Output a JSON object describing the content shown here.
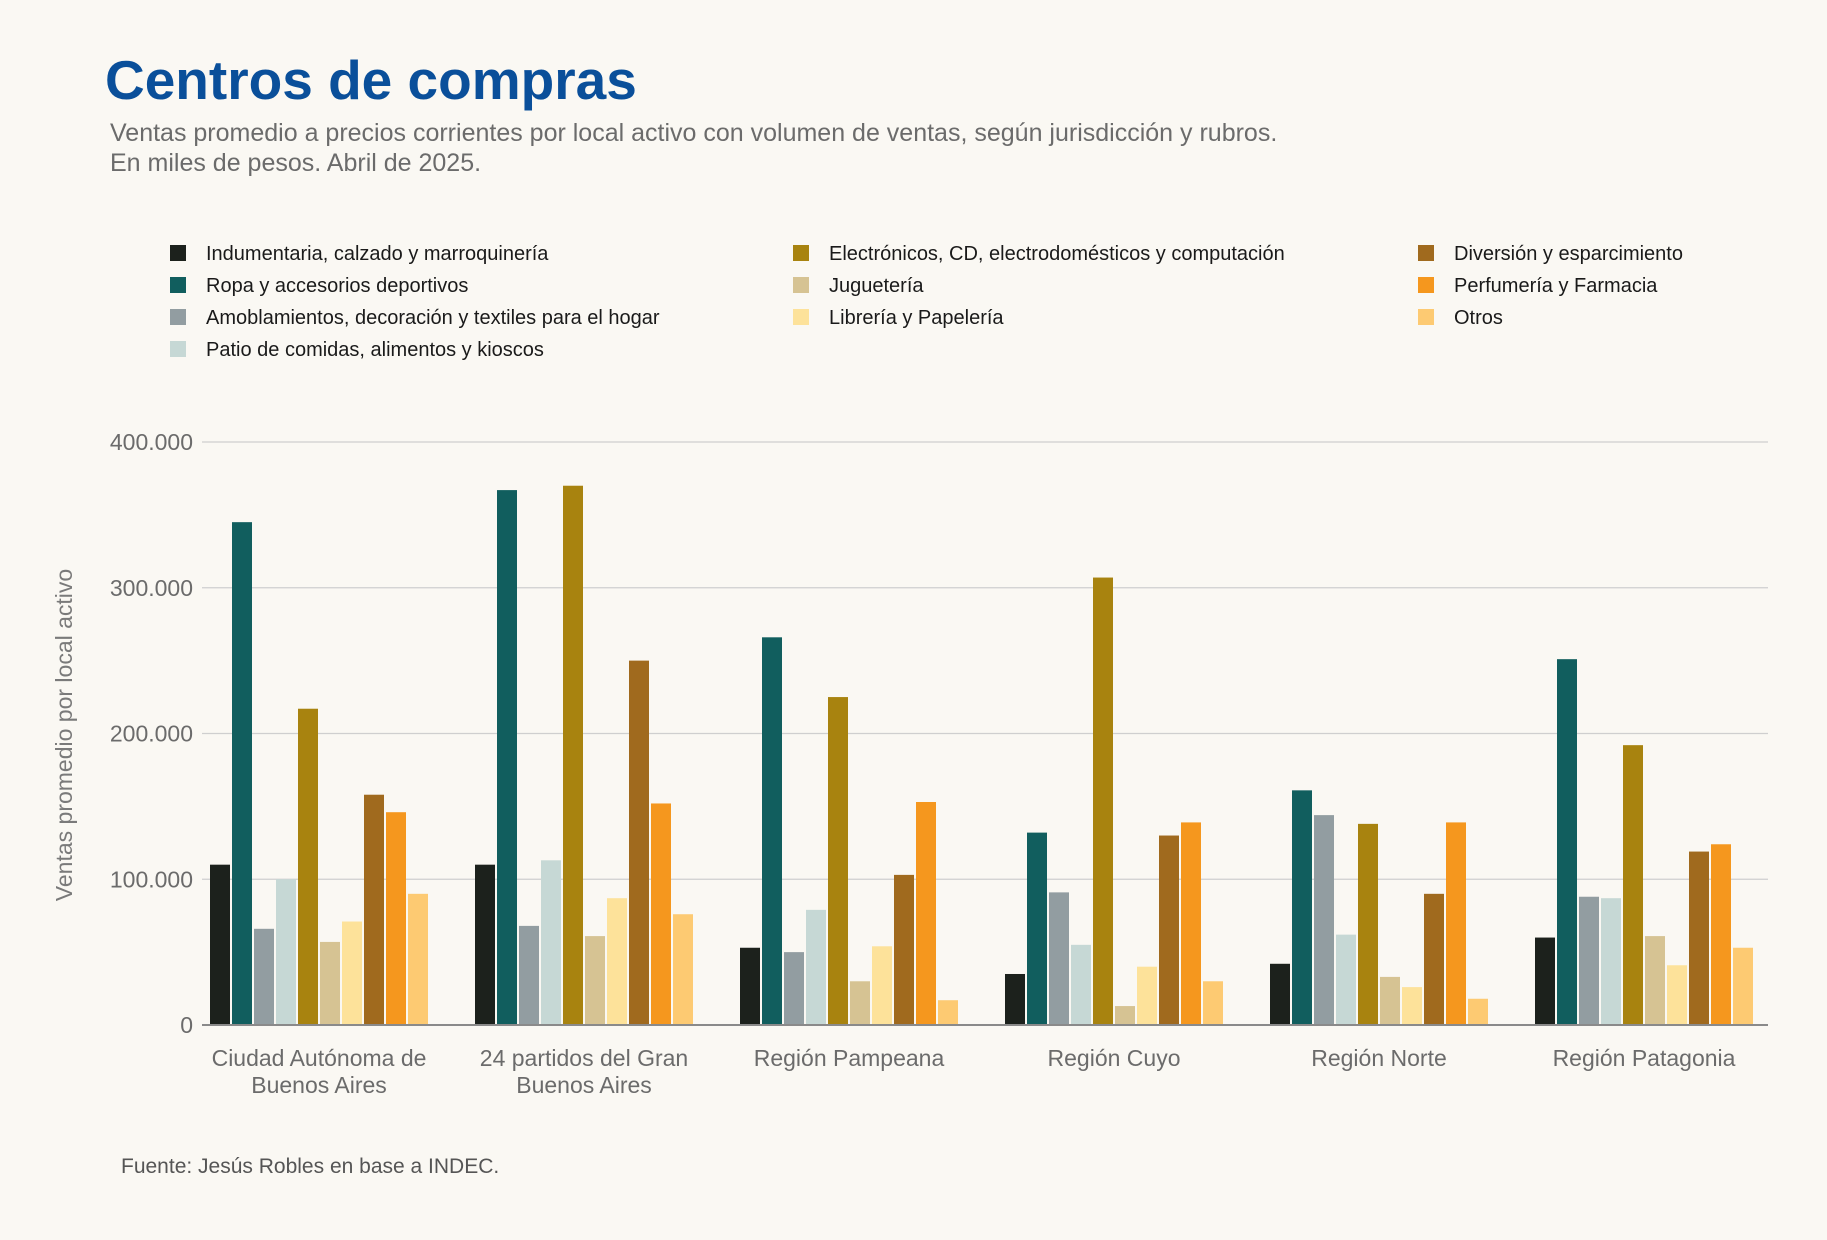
{
  "header": {
    "title": "Centros de compras",
    "subtitle": "Ventas promedio a precios corrientes por local activo con volumen de ventas, según jurisdicción y rubros. En miles de pesos. Abril de 2025."
  },
  "footer": {
    "source": "Fuente: Jesús Robles en base a INDEC."
  },
  "chart_data": {
    "type": "bar",
    "title": "Centros de compras",
    "subtitle": "Ventas promedio a precios corrientes por local activo con volumen de ventas, según jurisdicción y rubros. En miles de pesos. Abril de 2025.",
    "xlabel": "",
    "ylabel": "Ventas promedio por local activo",
    "ylim": [
      0,
      400000
    ],
    "yticks": [
      0,
      100000,
      200000,
      300000,
      400000
    ],
    "ytick_labels": [
      "0",
      "100.000",
      "200.000",
      "300.000",
      "400.000"
    ],
    "grid": "horizontal",
    "legend_position": "top",
    "categories": [
      "Ciudad Autónoma de Buenos Aires",
      "24 partidos del Gran Buenos Aires",
      "Región Pampeana",
      "Región Cuyo",
      "Región Norte",
      "Región Patagonia"
    ],
    "series": [
      {
        "name": "Indumentaria, calzado y marroquinería",
        "color": "#1c211c",
        "values": [
          110000,
          110000,
          53000,
          35000,
          42000,
          60000
        ]
      },
      {
        "name": "Ropa y accesorios deportivos",
        "color": "#115e5e",
        "values": [
          345000,
          367000,
          266000,
          132000,
          161000,
          251000
        ]
      },
      {
        "name": "Amoblamientos, decoración y textiles para el hogar",
        "color": "#929da1",
        "values": [
          66000,
          68000,
          50000,
          91000,
          144000,
          88000
        ]
      },
      {
        "name": "Patio de comidas, alimentos y kioscos",
        "color": "#c6d8d5",
        "values": [
          100000,
          113000,
          79000,
          55000,
          62000,
          87000
        ]
      },
      {
        "name": "Electrónicos, CD, electrodomésticos y computación",
        "color": "#a8830f",
        "values": [
          217000,
          370000,
          225000,
          307000,
          138000,
          192000
        ]
      },
      {
        "name": "Juguetería",
        "color": "#d6c393",
        "values": [
          57000,
          61000,
          30000,
          13000,
          33000,
          61000
        ]
      },
      {
        "name": "Librería y Papelería",
        "color": "#fde29a",
        "values": [
          71000,
          87000,
          54000,
          40000,
          26000,
          41000
        ]
      },
      {
        "name": "Diversión y esparcimiento",
        "color": "#a06a1e",
        "values": [
          158000,
          250000,
          103000,
          130000,
          90000,
          119000
        ]
      },
      {
        "name": "Perfumería y Farmacia",
        "color": "#f5971e",
        "values": [
          146000,
          152000,
          153000,
          139000,
          139000,
          124000
        ]
      },
      {
        "name": "Otros",
        "color": "#fdca72",
        "values": [
          90000,
          76000,
          17000,
          30000,
          18000,
          53000
        ]
      }
    ]
  }
}
